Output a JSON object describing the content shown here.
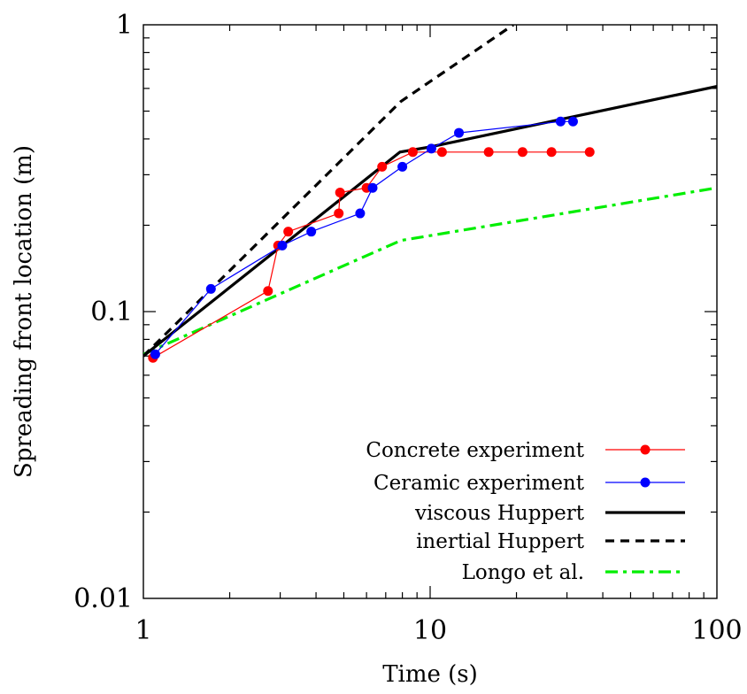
{
  "chart_data": {
    "type": "line",
    "title": "",
    "xlabel": "Time (s)",
    "ylabel": "Spreading front location (m)",
    "xscale": "log",
    "yscale": "log",
    "xlim": [
      1,
      100
    ],
    "ylim": [
      0.01,
      1
    ],
    "grid": false,
    "legend_position": "bottom-right",
    "x_ticks": [
      "1",
      "10",
      "100"
    ],
    "y_ticks": [
      "0.01",
      "0.1",
      "1"
    ],
    "series": [
      {
        "name": "Concrete experiment",
        "style": "line-points",
        "color": "#ff0000",
        "points": [
          [
            1.08,
            0.069
          ],
          [
            2.72,
            0.118
          ],
          [
            2.95,
            0.17
          ],
          [
            3.2,
            0.19
          ],
          [
            4.8,
            0.22
          ],
          [
            4.85,
            0.26
          ],
          [
            6.0,
            0.27
          ],
          [
            6.8,
            0.32
          ],
          [
            8.7,
            0.36
          ],
          [
            11.0,
            0.36
          ],
          [
            16.0,
            0.36
          ],
          [
            21.0,
            0.36
          ],
          [
            26.5,
            0.36
          ],
          [
            36.0,
            0.36
          ]
        ]
      },
      {
        "name": "Ceramic experiment",
        "style": "line-points",
        "color": "#0000ff",
        "points": [
          [
            1.1,
            0.071
          ],
          [
            1.72,
            0.12
          ],
          [
            3.05,
            0.17
          ],
          [
            3.85,
            0.19
          ],
          [
            5.7,
            0.22
          ],
          [
            6.3,
            0.27
          ],
          [
            8.0,
            0.32
          ],
          [
            10.1,
            0.37
          ],
          [
            12.6,
            0.42
          ],
          [
            28.5,
            0.46
          ],
          [
            31.5,
            0.46
          ]
        ]
      },
      {
        "name": "viscous Huppert",
        "style": "solid",
        "color": "#000000",
        "points": [
          [
            1.0,
            0.07
          ],
          [
            7.85,
            0.36
          ],
          [
            10.0,
            0.375
          ],
          [
            100.0,
            0.61
          ]
        ]
      },
      {
        "name": "inertial Huppert",
        "style": "dashed",
        "color": "#000000",
        "points": [
          [
            1.0,
            0.07
          ],
          [
            7.9,
            0.54
          ],
          [
            19.5,
            1.0
          ]
        ]
      },
      {
        "name": "Longo et al.",
        "style": "dash-dot",
        "color": "#00ee00",
        "points": [
          [
            1.0,
            0.071
          ],
          [
            7.9,
            0.177
          ],
          [
            100.0,
            0.27
          ]
        ]
      }
    ]
  }
}
